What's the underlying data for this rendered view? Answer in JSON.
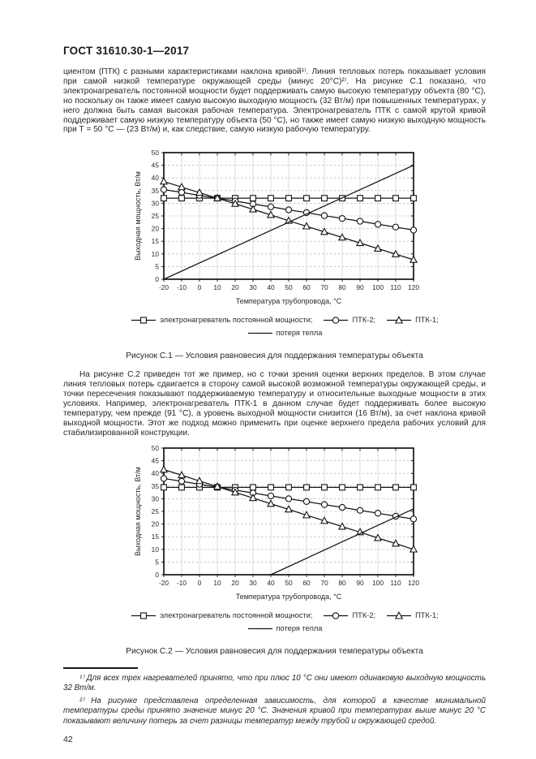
{
  "page": {
    "header": "ГОСТ 31610.30-1—2017",
    "page_number": "42"
  },
  "paragraphs": {
    "p1": "циентом (ПТК) с разными характеристиками наклона кривой¹⁾. Линия тепловых потерь показывает условия при самой низкой температуре окружающей среды (минус 20°С)²⁾. На рисунке С.1 показано, что электронагреватель постоянной мощности будет поддерживать самую высокую температуру объекта (80 °С), но поскольку он также имеет самую высокую выходную мощность (32 Вт/м) при повышенных температурах, у него должна быть самая высокая рабочая температура. Электронагреватель ПТК с самой крутой кривой поддерживает самую низкую температуру объекта (50 °С), но также имеет самую низкую выходную мощность при Т = 50 °С — (23 Вт/м) и, как следствие, самую низкую рабочую температуру.",
    "p2": "На рисунке С.2 приведен тот же пример, но с точки зрения оценки верхних пределов. В этом случае линия тепловых потерь сдвигается в сторону самой высокой возможной температуры окружающей среды, и точки пересечения показывают поддерживаемую температуру и относительные выходные мощности в этих условиях. Например, электронагреватель ПТК-1 в данном случае будет поддерживать более высокую температуру, чем прежде (91 °С), а уровень выходной мощности снизится (16 Вт/м), за счет наклона кривой выходной мощности. Этот же подход можно применить при оценке верхнего предела рабочих условий для стабилизированной конструкции."
  },
  "footnotes": {
    "fn1": "¹⁾ Для всех трех нагревателей принято, что при плюс 10 °С они имеют одинаковую выходную мощность 32 Вт/м.",
    "fn2": "²⁾ На рисунке представлена определенная зависимость, для которой в качестве минимальной температуры среды принято значение минус 20 °С. Значения кривой при температурах выше минус 20 °С показывают величину потерь за счет разницы температур между трубой и окружающей средой."
  },
  "chart_data": [
    {
      "type": "line",
      "title": "",
      "xlabel": "Температура трубопровода, °С",
      "ylabel": "Выходная мощность, Вт/м",
      "xlim": [
        -20,
        120
      ],
      "ylim": [
        0,
        50
      ],
      "xticks": [
        -20,
        -10,
        0,
        10,
        20,
        30,
        40,
        50,
        60,
        70,
        80,
        90,
        100,
        110,
        120
      ],
      "yticks": [
        0,
        5,
        10,
        15,
        20,
        25,
        30,
        35,
        40,
        45,
        50
      ],
      "grid": "on",
      "x": [
        -20,
        -10,
        0,
        10,
        20,
        30,
        40,
        50,
        60,
        70,
        80,
        90,
        100,
        110,
        120
      ],
      "series": [
        {
          "name": "электронагреватель постоянной мощности",
          "marker": "square",
          "values": [
            32,
            32,
            32,
            32,
            32,
            32,
            32,
            32,
            32,
            32,
            32,
            32,
            32,
            32,
            32
          ]
        },
        {
          "name": "ПТК-2",
          "marker": "circle",
          "values": [
            35.4,
            34.3,
            33.1,
            32.0,
            30.9,
            29.7,
            28.6,
            27.4,
            26.3,
            25.1,
            24.0,
            22.9,
            21.7,
            20.6,
            19.4
          ]
        },
        {
          "name": "ПТК-1",
          "marker": "triangle",
          "values": [
            38.6,
            36.4,
            34.2,
            32.0,
            29.8,
            27.6,
            25.4,
            23.1,
            20.9,
            18.7,
            16.5,
            14.3,
            12.1,
            9.9,
            7.7
          ]
        },
        {
          "name": "потеря тепла",
          "marker": "none",
          "points": [
            [
              -20,
              0
            ],
            [
              120,
              45
            ]
          ]
        }
      ],
      "legend": [
        [
          {
            "marker": "square",
            "label": "электронагреватель постоянной мощности;"
          },
          {
            "marker": "circle",
            "label": "ПТК-2;"
          },
          {
            "marker": "triangle",
            "label": "ПТК-1;"
          }
        ],
        [
          {
            "marker": "line",
            "label": "потеря тепла"
          }
        ]
      ],
      "legend_position": "bottom",
      "caption": "Рисунок С.1 — Условия равновесия для поддержания температуры объекта"
    },
    {
      "type": "line",
      "title": "",
      "xlabel": "Температура трубопровода, °С",
      "ylabel": "Выходная мощность, Вт/м",
      "xlim": [
        -20,
        120
      ],
      "ylim": [
        0,
        50
      ],
      "xticks": [
        -20,
        -10,
        0,
        10,
        20,
        30,
        40,
        50,
        60,
        70,
        80,
        90,
        100,
        110,
        120
      ],
      "yticks": [
        0,
        5,
        10,
        15,
        20,
        25,
        30,
        35,
        40,
        45,
        50
      ],
      "grid": "on",
      "x": [
        -20,
        -10,
        0,
        10,
        20,
        30,
        40,
        50,
        60,
        70,
        80,
        90,
        100,
        110,
        120
      ],
      "series": [
        {
          "name": "электронагреватель постоянной мощности",
          "marker": "square",
          "values": [
            34.5,
            34.5,
            34.5,
            34.5,
            34.5,
            34.5,
            34.5,
            34.5,
            34.5,
            34.5,
            34.5,
            34.5,
            34.5,
            34.5,
            34.5
          ]
        },
        {
          "name": "ПТК-2",
          "marker": "circle",
          "values": [
            38.0,
            36.9,
            35.7,
            34.6,
            33.4,
            32.3,
            31.1,
            30.0,
            28.9,
            27.7,
            26.6,
            25.4,
            24.3,
            23.1,
            22.0
          ]
        },
        {
          "name": "ПТК-1",
          "marker": "triangle",
          "values": [
            41.5,
            39.3,
            37.0,
            34.8,
            32.5,
            30.3,
            28.0,
            25.8,
            23.5,
            21.3,
            19.0,
            16.8,
            14.5,
            12.3,
            10.0
          ]
        },
        {
          "name": "потеря тепла",
          "marker": "none",
          "points": [
            [
              40,
              0
            ],
            [
              120,
              26
            ]
          ]
        }
      ],
      "legend": [
        [
          {
            "marker": "square",
            "label": "электронагреватель постоянной мощности;"
          },
          {
            "marker": "circle",
            "label": "ПТК-2;"
          },
          {
            "marker": "triangle",
            "label": "ПТК-1;"
          }
        ],
        [
          {
            "marker": "line",
            "label": "потеря тепла"
          }
        ]
      ],
      "legend_position": "bottom",
      "caption": "Рисунок С.2 — Условия равновесия для поддержания температуры объекта"
    }
  ]
}
